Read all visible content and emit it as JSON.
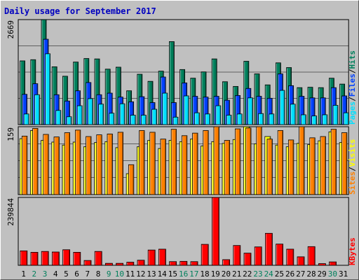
{
  "chart_data": [
    {
      "type": "bar",
      "title": "Daily usage for September 2017",
      "categories": [
        "1",
        "2",
        "3",
        "4",
        "5",
        "6",
        "7",
        "8",
        "9",
        "10",
        "11",
        "12",
        "13",
        "14",
        "15",
        "16",
        "17",
        "18",
        "19",
        "20",
        "21",
        "22",
        "23",
        "24",
        "25",
        "26",
        "27",
        "28",
        "29",
        "30",
        "31"
      ],
      "weekend_days": [
        "2",
        "3",
        "9",
        "10",
        "16",
        "17",
        "23",
        "24",
        "30"
      ],
      "ymax_label": "2669",
      "ylim": [
        0,
        2669
      ],
      "legend": [
        {
          "label": "Pages",
          "color": "#00e0ff"
        },
        {
          "label": "Files",
          "color": "#0040ff"
        },
        {
          "label": "Hits",
          "color": "#00805c"
        }
      ],
      "separator_text": "/",
      "series": [
        {
          "name": "Hits",
          "color": "#00805c",
          "values": [
            1620,
            1650,
            2669,
            1470,
            1230,
            1590,
            1680,
            1670,
            1410,
            1460,
            860,
            1280,
            1100,
            1360,
            2110,
            1400,
            1180,
            1340,
            1670,
            1090,
            970,
            1610,
            1290,
            1010,
            1570,
            1450,
            940,
            950,
            940,
            1180,
            1030
          ]
        },
        {
          "name": "Files",
          "color": "#0040ff",
          "values": [
            770,
            1040,
            2170,
            760,
            600,
            860,
            1070,
            760,
            800,
            700,
            580,
            710,
            560,
            1210,
            560,
            1060,
            720,
            700,
            720,
            620,
            740,
            920,
            720,
            670,
            1290,
            990,
            720,
            680,
            680,
            940,
            730
          ]
        },
        {
          "name": "Pages",
          "color": "#00e0ff",
          "values": [
            270,
            760,
            1800,
            360,
            200,
            480,
            660,
            520,
            290,
            530,
            240,
            240,
            390,
            800,
            190,
            730,
            300,
            270,
            480,
            240,
            270,
            680,
            280,
            270,
            870,
            520,
            250,
            220,
            250,
            490,
            300
          ]
        }
      ]
    },
    {
      "type": "bar",
      "ymax_label": "159",
      "ylim": [
        0,
        159
      ],
      "legend": [
        {
          "label": "Sites",
          "color": "#ff8000"
        },
        {
          "label": "Visits",
          "color": "#ffff00"
        }
      ],
      "separator_text": "/",
      "series": [
        {
          "name": "Visits",
          "color": "#ffff00",
          "values": [
            131,
            150,
            127,
            123,
            116,
            123,
            112,
            122,
            124,
            110,
            49,
            112,
            127,
            108,
            127,
            124,
            130,
            114,
            124,
            120,
            129,
            159,
            119,
            136,
            116,
            112,
            120,
            117,
            126,
            147,
            122
          ]
        },
        {
          "name": "Sites",
          "color": "#ff8000",
          "values": [
            137,
            155,
            141,
            135,
            145,
            151,
            136,
            140,
            142,
            146,
            70,
            150,
            146,
            130,
            153,
            138,
            144,
            150,
            162,
            127,
            154,
            156,
            164,
            130,
            150,
            128,
            159,
            133,
            136,
            153,
            145
          ]
        }
      ]
    },
    {
      "type": "bar",
      "ymax_label": "239844",
      "ylim": [
        0,
        239844
      ],
      "legend": [
        {
          "label": "KBytes",
          "color": "#ff0000"
        }
      ],
      "series": [
        {
          "name": "KBytes",
          "color": "#ff0000",
          "values": [
            51000,
            46000,
            49000,
            47000,
            55000,
            46000,
            17000,
            49000,
            7000,
            7000,
            11000,
            18000,
            54000,
            57000,
            13000,
            14000,
            13000,
            74000,
            239844,
            20000,
            70000,
            43000,
            65000,
            113000,
            75000,
            57000,
            30000,
            66000,
            6000,
            12000,
            0
          ]
        }
      ]
    }
  ]
}
